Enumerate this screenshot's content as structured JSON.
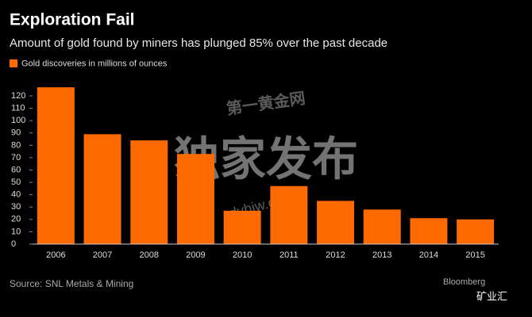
{
  "chart_data": {
    "type": "bar",
    "title": "Exploration Fail",
    "subtitle": "Amount of gold found by miners has plunged 85% over the past decade",
    "legend_label": "Gold discoveries in millions of ounces",
    "categories": [
      "2006",
      "2007",
      "2008",
      "2009",
      "2010",
      "2011",
      "2012",
      "2013",
      "2014",
      "2015"
    ],
    "values": [
      127,
      89,
      84,
      73,
      27,
      47,
      35,
      28,
      21,
      20
    ],
    "color": "#ff6a00",
    "ylim": [
      0,
      130
    ],
    "yticks": [
      0,
      10,
      20,
      30,
      40,
      50,
      60,
      70,
      80,
      90,
      100,
      110,
      120
    ],
    "source": "Source: SNL Metals & Mining",
    "brand": "Bloomberg",
    "watermarks": [
      "第一黄金网",
      "独家发布",
      "dyhjw.com",
      "矿业汇"
    ]
  }
}
